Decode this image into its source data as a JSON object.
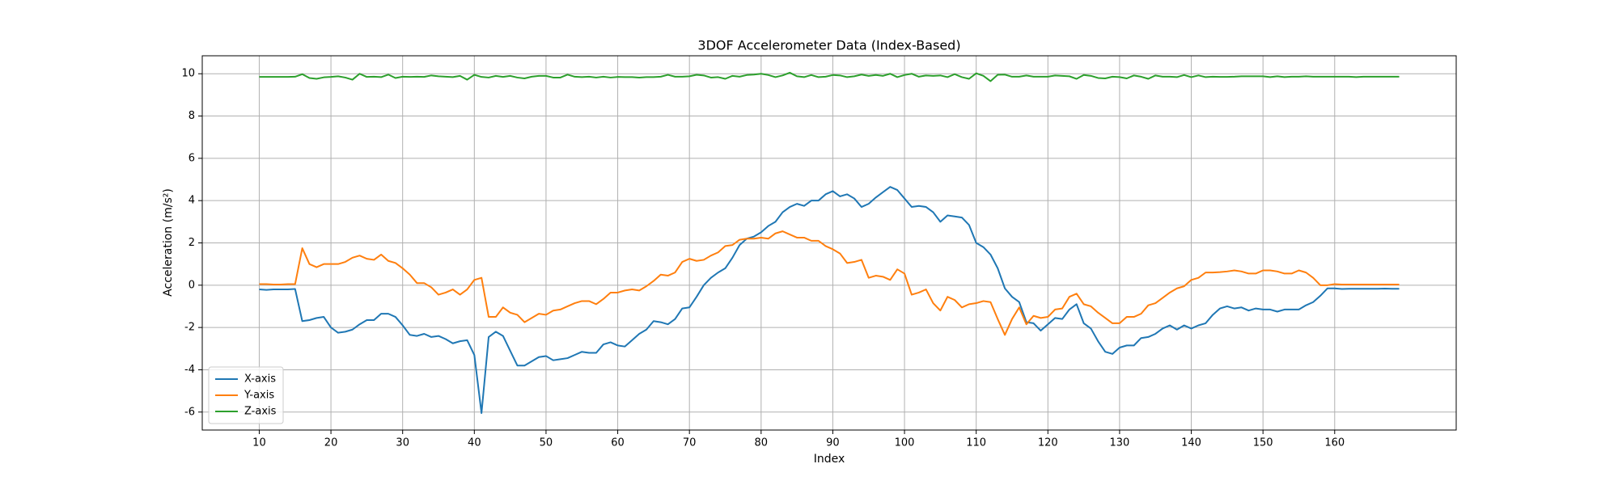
{
  "chart_data": {
    "type": "line",
    "title": "3DOF Accelerometer Data (Index-Based)",
    "xlabel": "Index",
    "ylabel": "Acceleration (m/s²)",
    "x": [
      10,
      11,
      12,
      13,
      14,
      15,
      16,
      17,
      18,
      19,
      20,
      21,
      22,
      23,
      24,
      25,
      26,
      27,
      28,
      29,
      30,
      31,
      32,
      33,
      34,
      35,
      36,
      37,
      38,
      39,
      40,
      41,
      42,
      43,
      44,
      45,
      46,
      47,
      48,
      49,
      50,
      51,
      52,
      53,
      54,
      55,
      56,
      57,
      58,
      59,
      60,
      61,
      62,
      63,
      64,
      65,
      66,
      67,
      68,
      69,
      70,
      71,
      72,
      73,
      74,
      75,
      76,
      77,
      78,
      79,
      80,
      81,
      82,
      83,
      84,
      85,
      86,
      87,
      88,
      89,
      90,
      91,
      92,
      93,
      94,
      95,
      96,
      97,
      98,
      99,
      100,
      101,
      102,
      103,
      104,
      105,
      106,
      107,
      108,
      109,
      110,
      111,
      112,
      113,
      114,
      115,
      116,
      117,
      118,
      119,
      120,
      121,
      122,
      123,
      124,
      125,
      126,
      127,
      128,
      129,
      130,
      131,
      132,
      133,
      134,
      135,
      136,
      137,
      138,
      139,
      140,
      141,
      142,
      143,
      144,
      145,
      146,
      147,
      148,
      149,
      150,
      151,
      152,
      153,
      154,
      155,
      156,
      157,
      158,
      159,
      160,
      161,
      162,
      163,
      164,
      165,
      166,
      167,
      168,
      169
    ],
    "series": [
      {
        "name": "X-axis",
        "color": "#1f77b4",
        "values": [
          -0.2,
          -0.22,
          -0.2,
          -0.2,
          -0.2,
          -0.18,
          -1.7,
          -1.65,
          -1.55,
          -1.5,
          -2.0,
          -2.25,
          -2.2,
          -2.1,
          -1.85,
          -1.65,
          -1.65,
          -1.35,
          -1.35,
          -1.5,
          -1.9,
          -2.35,
          -2.4,
          -2.3,
          -2.45,
          -2.4,
          -2.55,
          -2.75,
          -2.65,
          -2.6,
          -3.3,
          -6.05,
          -2.45,
          -2.2,
          -2.4,
          -3.1,
          -3.8,
          -3.8,
          -3.6,
          -3.4,
          -3.35,
          -3.55,
          -3.5,
          -3.45,
          -3.3,
          -3.15,
          -3.2,
          -3.2,
          -2.8,
          -2.7,
          -2.85,
          -2.9,
          -2.6,
          -2.3,
          -2.1,
          -1.7,
          -1.75,
          -1.85,
          -1.6,
          -1.1,
          -1.05,
          -0.55,
          0.0,
          0.35,
          0.6,
          0.8,
          1.3,
          1.9,
          2.2,
          2.3,
          2.5,
          2.8,
          3.0,
          3.45,
          3.7,
          3.85,
          3.75,
          4.0,
          4.0,
          4.3,
          4.45,
          4.2,
          4.3,
          4.1,
          3.7,
          3.85,
          4.15,
          4.4,
          4.65,
          4.5,
          4.1,
          3.7,
          3.75,
          3.7,
          3.45,
          3.0,
          3.3,
          3.25,
          3.2,
          2.85,
          2.0,
          1.8,
          1.45,
          0.8,
          -0.15,
          -0.55,
          -0.8,
          -1.75,
          -1.8,
          -2.15,
          -1.85,
          -1.55,
          -1.6,
          -1.15,
          -0.9,
          -1.8,
          -2.05,
          -2.65,
          -3.15,
          -3.25,
          -2.95,
          -2.85,
          -2.85,
          -2.5,
          -2.45,
          -2.3,
          -2.05,
          -1.9,
          -2.1,
          -1.9,
          -2.05,
          -1.9,
          -1.8,
          -1.4,
          -1.1,
          -1.0,
          -1.1,
          -1.05,
          -1.2,
          -1.1,
          -1.15,
          -1.15,
          -1.25,
          -1.15,
          -1.15,
          -1.15,
          -0.95,
          -0.8,
          -0.5,
          -0.15,
          -0.15,
          -0.18,
          -0.17,
          -0.17,
          -0.17,
          -0.17,
          -0.17,
          -0.16,
          -0.17,
          -0.17
        ]
      },
      {
        "name": "Y-axis",
        "color": "#ff7f0e",
        "values": [
          0.05,
          0.05,
          0.03,
          0.03,
          0.05,
          0.05,
          1.75,
          1.0,
          0.85,
          1.0,
          1.0,
          1.0,
          1.1,
          1.3,
          1.4,
          1.25,
          1.2,
          1.45,
          1.15,
          1.05,
          0.8,
          0.5,
          0.1,
          0.1,
          -0.1,
          -0.45,
          -0.35,
          -0.2,
          -0.45,
          -0.2,
          0.25,
          0.35,
          -1.5,
          -1.5,
          -1.05,
          -1.3,
          -1.4,
          -1.75,
          -1.55,
          -1.35,
          -1.4,
          -1.2,
          -1.15,
          -1.0,
          -0.85,
          -0.75,
          -0.75,
          -0.9,
          -0.65,
          -0.35,
          -0.35,
          -0.25,
          -0.2,
          -0.25,
          -0.05,
          0.2,
          0.5,
          0.45,
          0.6,
          1.1,
          1.25,
          1.15,
          1.2,
          1.4,
          1.55,
          1.85,
          1.9,
          2.15,
          2.2,
          2.2,
          2.25,
          2.2,
          2.45,
          2.55,
          2.4,
          2.25,
          2.25,
          2.1,
          2.1,
          1.85,
          1.7,
          1.5,
          1.05,
          1.1,
          1.2,
          0.35,
          0.45,
          0.4,
          0.25,
          0.75,
          0.55,
          -0.45,
          -0.35,
          -0.2,
          -0.85,
          -1.2,
          -0.55,
          -0.7,
          -1.05,
          -0.9,
          -0.85,
          -0.75,
          -0.8,
          -1.6,
          -2.35,
          -1.6,
          -1.05,
          -1.85,
          -1.45,
          -1.55,
          -1.5,
          -1.15,
          -1.1,
          -0.55,
          -0.4,
          -0.9,
          -1.0,
          -1.3,
          -1.55,
          -1.8,
          -1.8,
          -1.5,
          -1.5,
          -1.35,
          -0.95,
          -0.85,
          -0.6,
          -0.35,
          -0.15,
          -0.05,
          0.25,
          0.35,
          0.6,
          0.6,
          0.62,
          0.65,
          0.7,
          0.65,
          0.55,
          0.55,
          0.7,
          0.7,
          0.65,
          0.55,
          0.55,
          0.7,
          0.6,
          0.35,
          0.0,
          0.0,
          0.05,
          0.03,
          0.03,
          0.03,
          0.03,
          0.03,
          0.03,
          0.03,
          0.03,
          0.03
        ]
      },
      {
        "name": "Z-axis",
        "color": "#2ca02c",
        "values": [
          9.85,
          9.85,
          9.85,
          9.85,
          9.85,
          9.86,
          9.98,
          9.8,
          9.76,
          9.83,
          9.85,
          9.88,
          9.82,
          9.72,
          10.0,
          9.85,
          9.86,
          9.84,
          9.96,
          9.8,
          9.86,
          9.85,
          9.86,
          9.85,
          9.92,
          9.88,
          9.86,
          9.84,
          9.9,
          9.72,
          9.95,
          9.85,
          9.82,
          9.9,
          9.85,
          9.9,
          9.82,
          9.78,
          9.86,
          9.9,
          9.9,
          9.82,
          9.82,
          9.96,
          9.86,
          9.84,
          9.86,
          9.82,
          9.86,
          9.82,
          9.85,
          9.84,
          9.84,
          9.82,
          9.84,
          9.84,
          9.86,
          9.95,
          9.86,
          9.86,
          9.88,
          9.95,
          9.92,
          9.82,
          9.84,
          9.76,
          9.9,
          9.86,
          9.94,
          9.96,
          10.0,
          9.94,
          9.84,
          9.92,
          10.05,
          9.88,
          9.84,
          9.94,
          9.84,
          9.86,
          9.94,
          9.92,
          9.84,
          9.88,
          9.96,
          9.9,
          9.94,
          9.9,
          10.0,
          9.84,
          9.94,
          10.0,
          9.86,
          9.92,
          9.9,
          9.92,
          9.84,
          9.98,
          9.84,
          9.76,
          10.02,
          9.9,
          9.65,
          9.95,
          9.96,
          9.86,
          9.86,
          9.92,
          9.86,
          9.86,
          9.86,
          9.92,
          9.9,
          9.88,
          9.76,
          9.94,
          9.9,
          9.8,
          9.78,
          9.86,
          9.84,
          9.78,
          9.92,
          9.86,
          9.76,
          9.92,
          9.86,
          9.86,
          9.84,
          9.94,
          9.84,
          9.92,
          9.84,
          9.86,
          9.85,
          9.85,
          9.86,
          9.88,
          9.88,
          9.88,
          9.88,
          9.84,
          9.88,
          9.84,
          9.86,
          9.86,
          9.88,
          9.86,
          9.86,
          9.86,
          9.86,
          9.86,
          9.86,
          9.84,
          9.86,
          9.86,
          9.86,
          9.86,
          9.86,
          9.86
        ]
      }
    ],
    "xlim": [
      2.05,
      176.95
    ],
    "ylim": [
      -6.85,
      10.85
    ],
    "xticks": [
      10,
      20,
      30,
      40,
      50,
      60,
      70,
      80,
      90,
      100,
      110,
      120,
      130,
      140,
      150,
      160
    ],
    "yticks": [
      -6,
      -4,
      -2,
      0,
      2,
      4,
      6,
      8,
      10
    ],
    "grid": true,
    "legend": "lower left"
  }
}
